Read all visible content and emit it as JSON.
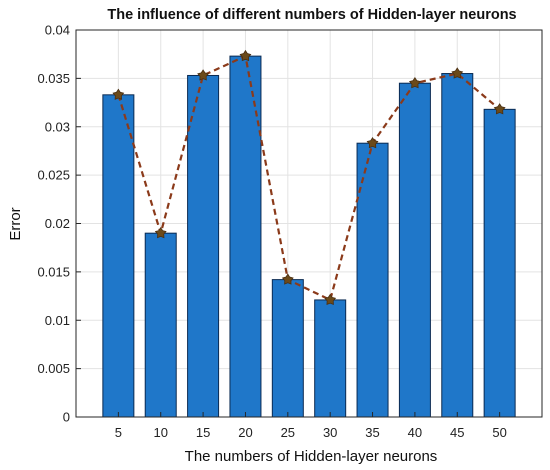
{
  "chart_data": {
    "type": "bar",
    "title": "The influence of different numbers of Hidden-layer neurons",
    "xlabel": "The numbers of Hidden-layer neurons",
    "ylabel": "Error",
    "categories": [
      "5",
      "10",
      "15",
      "20",
      "25",
      "30",
      "35",
      "40",
      "45",
      "50"
    ],
    "values": [
      0.0333,
      0.019,
      0.0353,
      0.0373,
      0.0142,
      0.0121,
      0.0283,
      0.0345,
      0.0355,
      0.0318
    ],
    "line_values": [
      0.0333,
      0.019,
      0.0353,
      0.0373,
      0.0142,
      0.0121,
      0.0283,
      0.0345,
      0.0355,
      0.0318
    ],
    "ylim": [
      0,
      0.04
    ],
    "xlim": [
      0,
      55
    ],
    "yticks": [
      "0",
      "0.005",
      "0.01",
      "0.015",
      "0.02",
      "0.025",
      "0.03",
      "0.035",
      "0.04"
    ],
    "grid": true,
    "legend": "none",
    "colors": {
      "bar_fill": "#1f77c9",
      "bar_edge": "#0a2a52",
      "line": "#8b3a1a",
      "marker": "#6b4a1a",
      "grid": "#e3e3e3"
    }
  }
}
